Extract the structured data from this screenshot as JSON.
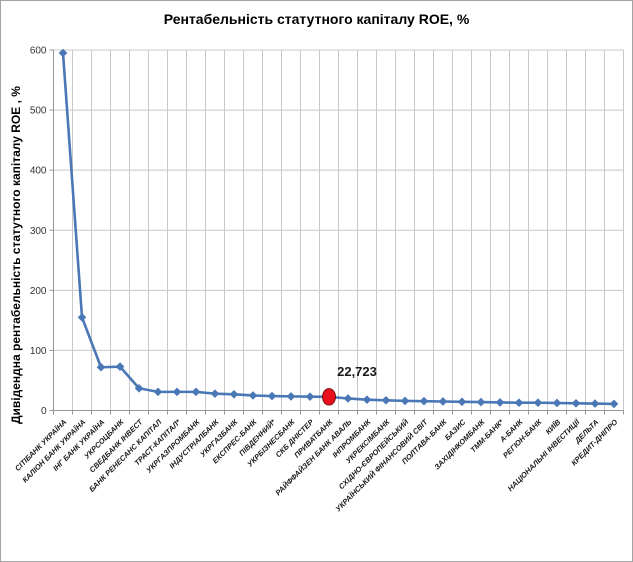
{
  "window": {
    "background": "#ffffff",
    "border_color": "#a3a3a3"
  },
  "chart_data": {
    "type": "line",
    "title": "Рентабельність статутного капіталу ROE, %",
    "ylabel": "Дивідендна рентабельність статутного капіталу ROE , %",
    "xlabel": "",
    "ylim": [
      0,
      600
    ],
    "yticks": [
      0,
      100,
      200,
      300,
      400,
      500,
      600
    ],
    "grid": "both",
    "legend": "none",
    "categories": [
      "СІТІБАНК УКРАЇНА",
      "КАЛІОН БАНК УКРАЇНА",
      "ІНГ БАНК УКРАЇНА",
      "УКРСОЦБАНК",
      "СВЕДБАНК ІНВЕСТ",
      "БАНК РЕНЕСАНС КАПІТАЛ",
      "ТРАСТ-КАПІТАЛ*",
      "УКРГАЗПРОМБАНК",
      "ІНДУСТРІАЛБАНК",
      "УКРГАЗБАНК",
      "ЕКСПРЕС-БАНК",
      "ПІВДЕННИЙ*",
      "УКРБІЗНЕСБАНК",
      "СКБ ДНІСТЕР",
      "ПРИВАТБАНК",
      "РАЙФФАЙЗЕН БАНК АВАЛЬ",
      "ІНПРОМБАНК",
      "УКРЕКСІМБАНК",
      "СХІДНО-ЄВРОПЕЙСЬКИЙ",
      "УКРАЇНСЬКИЙ ФІНАНСОВИЙ СВІТ",
      "ПОЛТАВА-БАНК",
      "БАЗИС",
      "ЗАХІДІНКОМБАНК",
      "ТММ-БАНК*",
      "А-БАНК",
      "РЕГІОН-БАНК",
      "КИЇВ",
      "НАЦІОНАЛЬНІ ІНВЕСТИЦІЇ",
      "ДЕЛЬТА",
      "КРЕДИТ-ДНІПРО"
    ],
    "series": [
      {
        "name": "ROE",
        "color": "#4a77b5",
        "marker": "diamond",
        "values": [
          595,
          155,
          72,
          73,
          37,
          31,
          31,
          31,
          28,
          27,
          25,
          24,
          23.5,
          23,
          22.723,
          20,
          18,
          17,
          16,
          15.5,
          15,
          14.5,
          14,
          13.5,
          13,
          13,
          12.5,
          12,
          11.5,
          11
        ]
      }
    ],
    "highlight": {
      "category": "ПРИВАТБАНК",
      "index": 14,
      "value": 22.723,
      "label": "22,723",
      "marker_color": "#e8101c",
      "marker_edge": "#7d0c0c"
    },
    "colors": {
      "gridline": "#c8c8c8",
      "axis": "#969696",
      "tick_label": "#333333",
      "category_label": "#1a1a1a",
      "data_label": "#1a1a1a"
    }
  }
}
